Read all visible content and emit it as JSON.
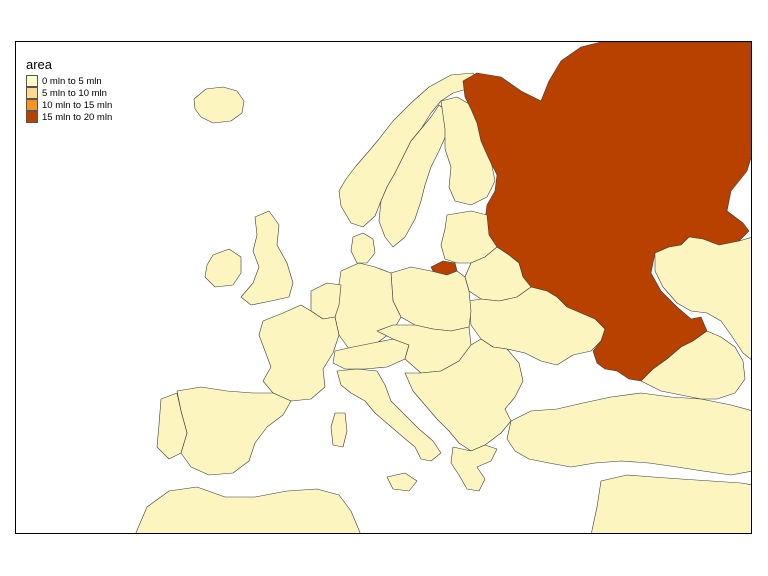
{
  "legend": {
    "title": "area",
    "items": [
      {
        "label": "0 mln to 5 mln",
        "color": "#ffffc8"
      },
      {
        "label": "5 mln to 10 mln",
        "color": "#fed98e"
      },
      {
        "label": "10 mln to 15 mln",
        "color": "#f7931e"
      },
      {
        "label": "15 mln to 20 mln",
        "color": "#b84100"
      }
    ]
  },
  "colors": {
    "land": "#fdf5c0",
    "high": "#b84100",
    "background": "#ffffff",
    "border": "#3a3a3a"
  }
}
